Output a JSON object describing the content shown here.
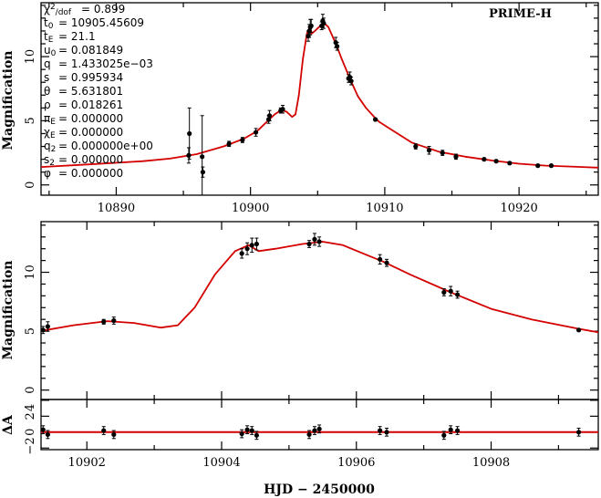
{
  "chart_data": [
    {
      "type": "scatter",
      "title": "",
      "annotation": "PRIME-H",
      "xlabel": "",
      "ylabel": "Magnification",
      "xlim": [
        10884.4,
        10925.9
      ],
      "ylim": [
        -0.8,
        14.2
      ],
      "xticks": [
        10890,
        10900,
        10910,
        10920
      ],
      "yticks": [
        0,
        5,
        10
      ],
      "parameters": [
        {
          "sym": "χ",
          "sup": "2",
          "sub": "/dof",
          "value": "0.899"
        },
        {
          "sym": "t",
          "sub": "0",
          "value": "10905.45609"
        },
        {
          "sym": "t",
          "sub": "E",
          "value": "21.1"
        },
        {
          "sym": "u",
          "sub": "0",
          "value": "0.081849"
        },
        {
          "sym": "q",
          "sub": "",
          "value": "1.433025e−03"
        },
        {
          "sym": "s",
          "sub": "",
          "value": "0.995934"
        },
        {
          "sym": "θ",
          "sub": "",
          "value": "5.631801"
        },
        {
          "sym": "ρ",
          "sub": "",
          "value": "0.018261"
        },
        {
          "sym": "π",
          "sub": "E",
          "value": "0.000000"
        },
        {
          "sym": "χ",
          "sub": "E",
          "value": "0.000000"
        },
        {
          "sym": "q",
          "sub": "2",
          "value": "0.000000e+00"
        },
        {
          "sym": "s",
          "sub": "2",
          "value": "0.000000"
        },
        {
          "sym": "φ",
          "sub": "",
          "value": "0.000000"
        }
      ]
    },
    {
      "type": "scatter",
      "title": "",
      "xlabel": "HJD − 2450000",
      "ylabel": "Magnification",
      "xlim": [
        10901.32,
        10909.59
      ],
      "ylim": [
        -0.8,
        14.3
      ],
      "xticks": [
        10902,
        10904,
        10906,
        10908
      ],
      "yticks": [
        0,
        5,
        10
      ],
      "residual_panel": {
        "ylabel": "ΔA",
        "ylim": [
          -2.2,
          4.1
        ],
        "yticks": [
          -2,
          0,
          2,
          4
        ]
      }
    }
  ],
  "model": [
    [
      10884.4,
      1.4
    ],
    [
      10888,
      1.6
    ],
    [
      10892,
      1.85
    ],
    [
      10894,
      2.05
    ],
    [
      10896,
      2.4
    ],
    [
      10898,
      3.0
    ],
    [
      10899.5,
      3.6
    ],
    [
      10900.5,
      4.2
    ],
    [
      10901.3,
      5.0
    ],
    [
      10901.8,
      5.5
    ],
    [
      10902.3,
      5.85
    ],
    [
      10902.7,
      5.7
    ],
    [
      10903.1,
      5.3
    ],
    [
      10903.35,
      5.5
    ],
    [
      10903.6,
      7.0
    ],
    [
      10903.9,
      9.8
    ],
    [
      10904.2,
      11.8
    ],
    [
      10904.4,
      12.3
    ],
    [
      10904.55,
      11.8
    ],
    [
      10904.8,
      12.0
    ],
    [
      10905.2,
      12.4
    ],
    [
      10905.5,
      12.6
    ],
    [
      10905.8,
      12.3
    ],
    [
      10906.1,
      11.6
    ],
    [
      10906.4,
      10.9
    ],
    [
      10906.8,
      9.8
    ],
    [
      10907.4,
      8.3
    ],
    [
      10908,
      6.9
    ],
    [
      10908.6,
      6.0
    ],
    [
      10909.3,
      5.2
    ],
    [
      10909.6,
      4.9
    ],
    [
      10910.5,
      4.3
    ],
    [
      10912,
      3.3
    ],
    [
      10914,
      2.6
    ],
    [
      10916,
      2.2
    ],
    [
      10918,
      1.9
    ],
    [
      10920,
      1.65
    ],
    [
      10922,
      1.5
    ],
    [
      10925.9,
      1.35
    ]
  ],
  "points": [
    {
      "t": 10895.4,
      "A": 2.3,
      "err": 0.6,
      "res": 0
    },
    {
      "t": 10895.45,
      "A": 4.0,
      "err": 2.0,
      "res": 0
    },
    {
      "t": 10896.4,
      "A": 2.2,
      "err": 3.2,
      "res": 0
    },
    {
      "t": 10896.45,
      "A": 1.0,
      "err": 0.4,
      "res": 0
    },
    {
      "t": 10898.4,
      "A": 3.2,
      "err": 0.2,
      "res": 0
    },
    {
      "t": 10899.4,
      "A": 3.5,
      "err": 0.2,
      "res": 0
    },
    {
      "t": 10900.4,
      "A": 4.1,
      "err": 0.3,
      "res": 0
    },
    {
      "t": 10901.35,
      "A": 5.1,
      "err": 0.3,
      "res": 0.3
    },
    {
      "t": 10901.42,
      "A": 5.4,
      "err": 0.4,
      "res": -0.3
    },
    {
      "t": 10902.25,
      "A": 5.8,
      "err": 0.2,
      "res": 0.2
    },
    {
      "t": 10902.4,
      "A": 5.9,
      "err": 0.3,
      "res": -0.3
    },
    {
      "t": 10904.3,
      "A": 11.6,
      "err": 0.4,
      "res": -0.2
    },
    {
      "t": 10904.38,
      "A": 12.0,
      "err": 0.5,
      "res": 0.3
    },
    {
      "t": 10904.45,
      "A": 12.3,
      "err": 0.6,
      "res": 0.2
    },
    {
      "t": 10904.52,
      "A": 12.4,
      "err": 0.5,
      "res": -0.4
    },
    {
      "t": 10905.3,
      "A": 12.4,
      "err": 0.3,
      "res": -0.3
    },
    {
      "t": 10905.38,
      "A": 12.8,
      "err": 0.5,
      "res": 0.2
    },
    {
      "t": 10905.45,
      "A": 12.6,
      "err": 0.4,
      "res": 0.4
    },
    {
      "t": 10906.35,
      "A": 11.1,
      "err": 0.4,
      "res": 0.2
    },
    {
      "t": 10906.45,
      "A": 10.8,
      "err": 0.3,
      "res": 0
    },
    {
      "t": 10907.3,
      "A": 8.3,
      "err": 0.3,
      "res": -0.4
    },
    {
      "t": 10907.4,
      "A": 8.4,
      "err": 0.4,
      "res": 0.3
    },
    {
      "t": 10907.5,
      "A": 8.1,
      "err": 0.3,
      "res": 0.2
    },
    {
      "t": 10909.3,
      "A": 5.1,
      "err": 0.1,
      "res": 0
    },
    {
      "t": 10912.3,
      "A": 3.0,
      "err": 0.2,
      "res": 0
    },
    {
      "t": 10913.3,
      "A": 2.7,
      "err": 0.3,
      "res": 0
    },
    {
      "t": 10914.3,
      "A": 2.5,
      "err": 0.2,
      "res": 0
    },
    {
      "t": 10915.3,
      "A": 2.2,
      "err": 0.2,
      "res": 0
    },
    {
      "t": 10917.4,
      "A": 2.0,
      "err": 0.1,
      "res": 0
    },
    {
      "t": 10918.3,
      "A": 1.85,
      "err": 0.1,
      "res": 0
    },
    {
      "t": 10919.3,
      "A": 1.7,
      "err": 0.1,
      "res": 0
    },
    {
      "t": 10921.4,
      "A": 1.5,
      "err": 0.1,
      "res": 0
    },
    {
      "t": 10922.4,
      "A": 1.5,
      "err": 0.1,
      "res": 0
    }
  ],
  "colors": {
    "model": "#d40000",
    "points": "#000000"
  }
}
